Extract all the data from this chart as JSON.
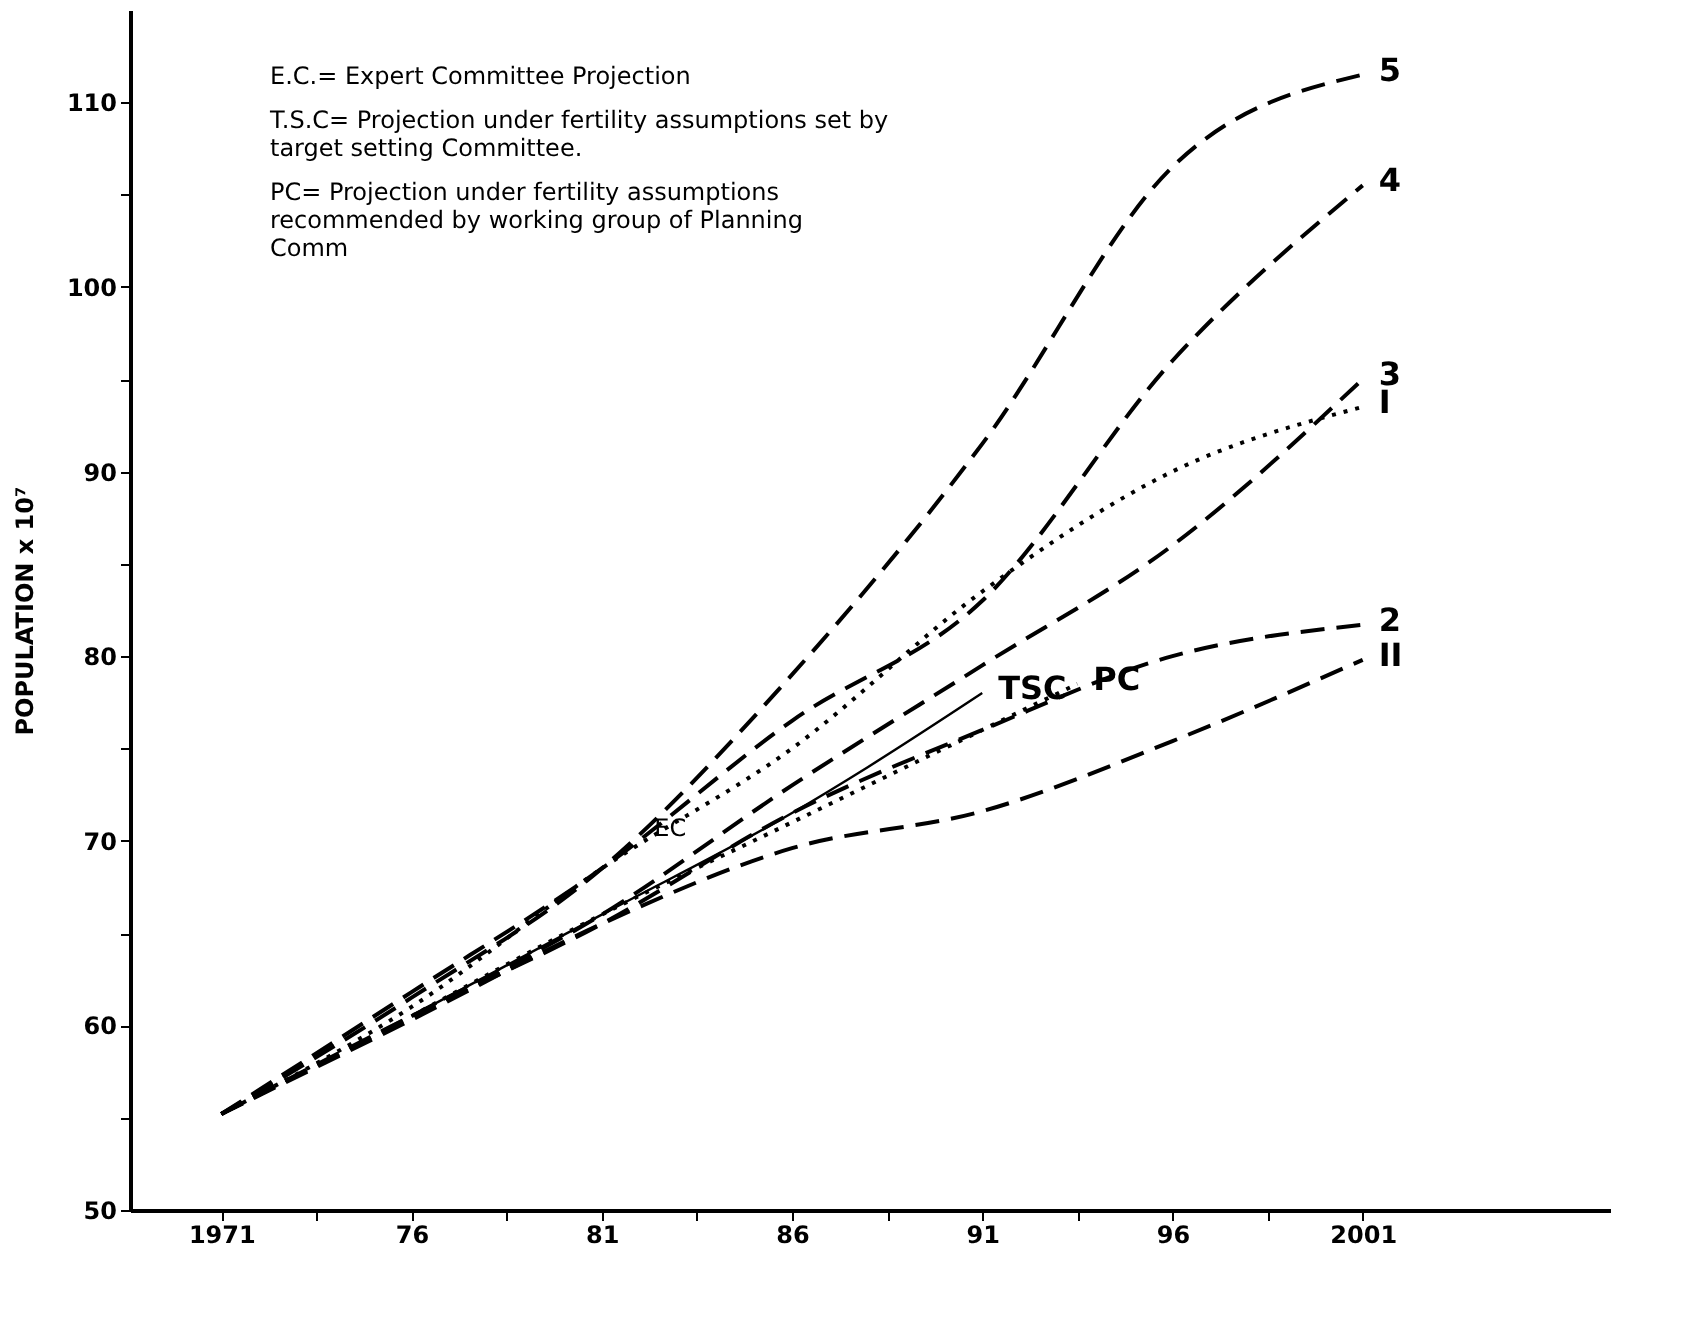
{
  "chart_data": {
    "type": "line",
    "ylabel": "POPULATION x 10⁷",
    "grid": false,
    "marker": "none",
    "xlim": [
      1968.6,
      2007.5
    ],
    "ylim": [
      50,
      115
    ],
    "xticks": [
      1971,
      {
        "value": 1973.5,
        "label": null
      },
      {
        "value": 1976,
        "label": "76"
      },
      {
        "value": 1978.5,
        "label": null
      },
      {
        "value": 1981,
        "label": "81"
      },
      {
        "value": 1983.5,
        "label": null
      },
      {
        "value": 1986,
        "label": "86"
      },
      {
        "value": 1988.5,
        "label": null
      },
      {
        "value": 1991,
        "label": "91"
      },
      {
        "value": 1993.5,
        "label": null
      },
      {
        "value": 1996,
        "label": "96"
      },
      {
        "value": 1998.5,
        "label": null
      },
      {
        "value": 2001,
        "label": "2001"
      }
    ],
    "yticks": [
      50,
      {
        "value": 55,
        "label": null
      },
      60,
      {
        "value": 65,
        "label": null
      },
      70,
      {
        "value": 75,
        "label": null
      },
      80,
      {
        "value": 85,
        "label": null
      },
      90,
      {
        "value": 95,
        "label": null
      },
      100,
      {
        "value": 105,
        "label": null
      },
      110
    ],
    "series": [
      {
        "name": "5",
        "color": "#000000",
        "line_style": "dashed",
        "x": [
          1971,
          1976,
          1981,
          1986,
          1991,
          1996,
          2001
        ],
        "values": [
          55.2,
          61.5,
          68.5,
          79,
          91.5,
          106.5,
          111.5
        ]
      },
      {
        "name": "4",
        "color": "#000000",
        "line_style": "dashed",
        "x": [
          1971,
          1976,
          1981,
          1986,
          1991,
          1996,
          2001
        ],
        "values": [
          55.2,
          61.8,
          68.5,
          76.5,
          83,
          96,
          105.5
        ]
      },
      {
        "name": "3",
        "color": "#000000",
        "line_style": "dashed",
        "x": [
          1971,
          1976,
          1981,
          1986,
          1991,
          1996,
          2001
        ],
        "values": [
          55.2,
          60.5,
          66,
          73,
          79.5,
          86,
          95
        ]
      },
      {
        "name": "I",
        "color": "#000000",
        "line_style": "dotted",
        "x": [
          1971,
          1976,
          1981,
          1986,
          1991,
          1996,
          2001
        ],
        "values": [
          55.2,
          61,
          68.5,
          75,
          83.5,
          90,
          93.5
        ]
      },
      {
        "name": "TSC",
        "color": "#000000",
        "line_style": "solid",
        "x": [
          1976,
          1981,
          1986,
          1988,
          1991
        ],
        "values": [
          60.5,
          66,
          71.5,
          74,
          78
        ]
      },
      {
        "name": "PC",
        "color": "#000000",
        "line_style": "dotted",
        "x": [
          1976,
          1981,
          1986,
          1991,
          1993.5
        ],
        "values": [
          60.5,
          66,
          71,
          76,
          78.5
        ]
      },
      {
        "name": "2",
        "color": "#000000",
        "line_style": "dashed",
        "x": [
          1971,
          1976,
          1981,
          1986,
          1991,
          1996,
          2001
        ],
        "values": [
          55.2,
          60.5,
          65.5,
          71.5,
          76,
          80,
          81.7
        ]
      },
      {
        "name": "II",
        "color": "#000000",
        "line_style": "dashed",
        "x": [
          1971,
          1976,
          1981,
          1986,
          1991,
          1996,
          2001
        ],
        "values": [
          55.2,
          60.3,
          65.5,
          69.6,
          71.6,
          75.4,
          79.8
        ]
      }
    ],
    "annotations": [
      "E.C.= Expert Committee Projection",
      "T.S.C= Projection under fertility assumptions set by\ntarget setting Committee.",
      "PC= Projection under fertility assumptions\nrecommended  by working group of Planning\nComm",
      {
        "text": "EC",
        "x": 1982.8,
        "y": 70.7
      }
    ]
  }
}
